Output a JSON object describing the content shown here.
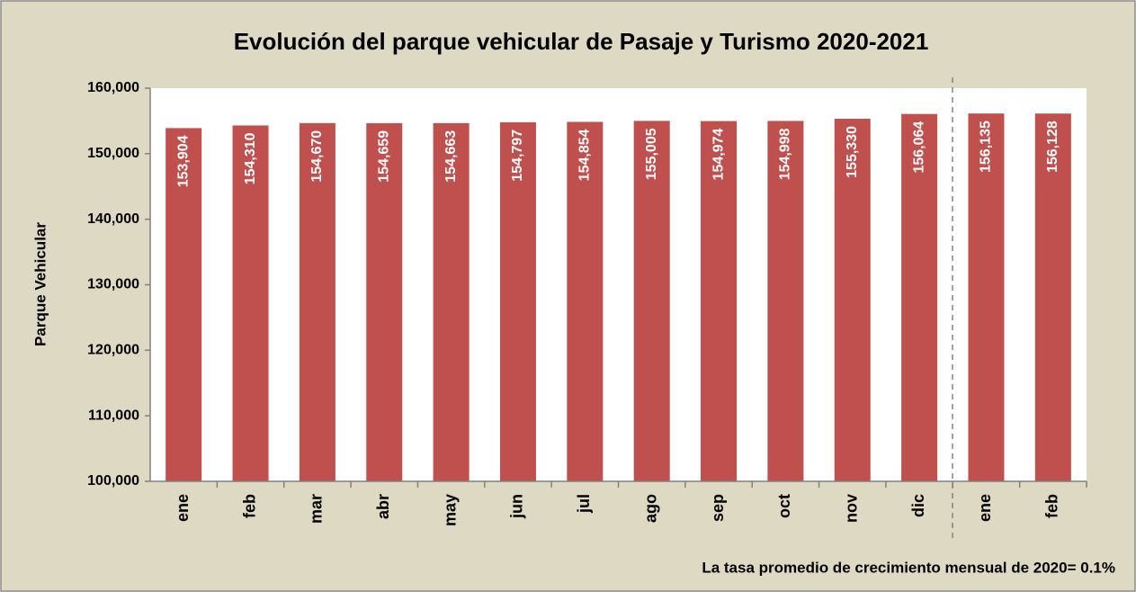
{
  "chart_data": {
    "type": "bar",
    "title": "Evolución del parque vehicular de Pasaje y  Turismo 2020-2021",
    "y_label": "Parque Vehicular",
    "annotation": "La tasa promedio de crecimiento mensual de 2020= 0.1%",
    "categories": [
      "ene",
      "feb",
      "mar",
      "abr",
      "may",
      "jun",
      "jul",
      "ago",
      "sep",
      "oct",
      "nov",
      "dic",
      "ene",
      "feb"
    ],
    "values": [
      153904,
      154310,
      154670,
      154659,
      154663,
      154797,
      154854,
      155005,
      154974,
      154998,
      155330,
      156064,
      156135,
      156128
    ],
    "value_labels": [
      "153,904",
      "154,310",
      "154,670",
      "154,659",
      "154,663",
      "154,797",
      "154,854",
      "155,005",
      "154,974",
      "154,998",
      "155,330",
      "156,064",
      "156,135",
      "156,128"
    ],
    "color": "#c0504d",
    "ylim": [
      100000,
      160000
    ],
    "yticks": [
      {
        "value": 100000,
        "label": "100,000"
      },
      {
        "value": 110000,
        "label": "110,000"
      },
      {
        "value": 120000,
        "label": "120,000"
      },
      {
        "value": 130000,
        "label": "130,000"
      },
      {
        "value": 140000,
        "label": "140,000"
      },
      {
        "value": 150000,
        "label": "150,000"
      },
      {
        "value": 160000,
        "label": "160,000"
      }
    ],
    "grid": false
  }
}
